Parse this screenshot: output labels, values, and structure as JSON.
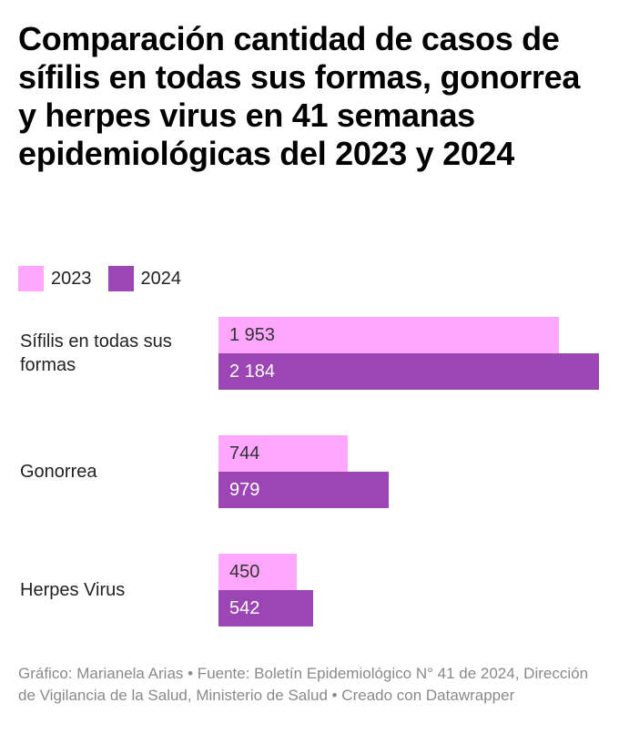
{
  "chart_data": {
    "type": "bar",
    "orientation": "horizontal",
    "title": "Comparación cantidad de casos de sífilis en todas sus formas, gonorrea y herpes virus en 41 semanas epidemiológicas del 2023 y 2024",
    "categories": [
      "Sífilis en todas sus formas",
      "Gonorrea",
      "Herpes Virus"
    ],
    "series": [
      {
        "name": "2023",
        "color": "#ffa6ff",
        "label_color": "#333333",
        "values": [
          1953,
          744,
          450
        ],
        "labels": [
          "1 953",
          "744",
          "450"
        ]
      },
      {
        "name": "2024",
        "color": "#9c45b4",
        "label_color": "#ffffff",
        "values": [
          2184,
          979,
          542
        ],
        "labels": [
          "2 184",
          "979",
          "542"
        ]
      }
    ],
    "legend": {
      "placement": "top-left",
      "entries": [
        "2023",
        "2024"
      ]
    },
    "xlim": [
      0,
      2184
    ],
    "grid": false,
    "xlabel": "",
    "ylabel": ""
  },
  "footer": "Gráfico: Marianela Arias • Fuente: Boletín Epidemiológico N° 41 de 2024, Dirección de Vigilancia de la Salud, Ministerio de Salud • Creado con Datawrapper"
}
